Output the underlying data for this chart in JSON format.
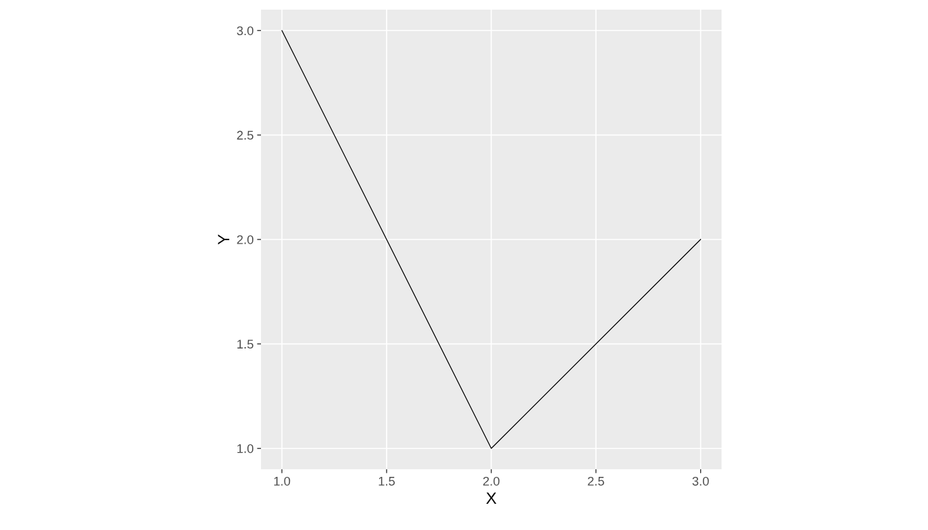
{
  "chart_data": {
    "type": "line",
    "xlabel": "X",
    "ylabel": "Y",
    "x": [
      1,
      2,
      3
    ],
    "series": [
      {
        "color": "#000000",
        "values": [
          3,
          1,
          2
        ]
      }
    ],
    "xlim": [
      0.9,
      3.1
    ],
    "ylim": [
      0.9,
      3.1
    ],
    "xticks": [
      {
        "value": 1,
        "label": "1.0"
      },
      {
        "value": 1.5,
        "label": "1.5"
      },
      {
        "value": 2,
        "label": "2.0"
      },
      {
        "value": 2.5,
        "label": "2.5"
      },
      {
        "value": 3,
        "label": "3.0"
      }
    ],
    "yticks": [
      {
        "value": 1,
        "label": "1.0"
      },
      {
        "value": 1.5,
        "label": "1.5"
      },
      {
        "value": 2,
        "label": "2.0"
      },
      {
        "value": 2.5,
        "label": "2.5"
      },
      {
        "value": 3,
        "label": "3.0"
      }
    ],
    "grid": true,
    "legend": false
  }
}
